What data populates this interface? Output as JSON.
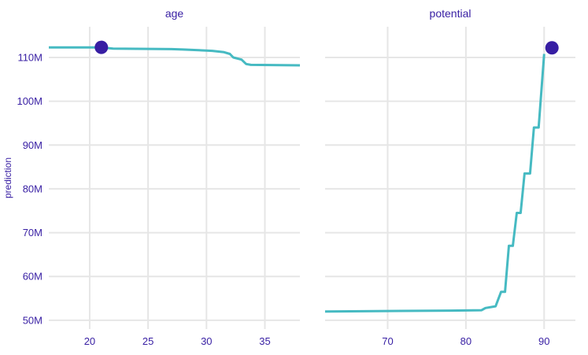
{
  "chart_data": {
    "type": "line",
    "ylabel": "prediction",
    "grid": true,
    "colors": {
      "line": "#46bac2",
      "point": "#371ea3",
      "text": "#371ea3",
      "grid": "#e6e6e6"
    },
    "y": {
      "ylim": [
        48000000,
        117000000
      ],
      "ticks": [
        50000000,
        60000000,
        70000000,
        80000000,
        90000000,
        100000000,
        110000000
      ],
      "tick_labels": [
        "50M",
        "60M",
        "70M",
        "80M",
        "90M",
        "100M",
        "110M"
      ]
    },
    "panels": [
      {
        "title": "age",
        "xlim": [
          16.5,
          38
        ],
        "x_ticks": [
          20,
          25,
          30,
          35
        ],
        "x_tick_labels": [
          "20",
          "25",
          "30",
          "35"
        ],
        "series": {
          "x": [
            16.5,
            21,
            22,
            27,
            28,
            30.5,
            31.5,
            32,
            32.3,
            33,
            33.4,
            33.8,
            38
          ],
          "values": [
            112300000,
            112300000,
            112000000,
            111900000,
            111800000,
            111500000,
            111200000,
            110800000,
            110000000,
            109500000,
            108500000,
            108300000,
            108200000
          ]
        },
        "point": {
          "x": 21,
          "y": 112300000
        }
      },
      {
        "title": "potential",
        "xlim": [
          62,
          94
        ],
        "x_ticks": [
          70,
          80,
          90
        ],
        "x_tick_labels": [
          "70",
          "80",
          "90"
        ],
        "series": {
          "x": [
            62,
            78,
            82,
            82.5,
            83.8,
            84.5,
            85,
            85.5,
            86,
            86.5,
            87,
            87.5,
            88.2,
            88.7,
            89.3,
            90
          ],
          "values": [
            52000000,
            52200000,
            52300000,
            52800000,
            53200000,
            56500000,
            56500000,
            67000000,
            67000000,
            74500000,
            74500000,
            83500000,
            83500000,
            94000000,
            94000000,
            110800000
          ]
        },
        "point": {
          "x": 91,
          "y": 112200000
        }
      }
    ]
  }
}
